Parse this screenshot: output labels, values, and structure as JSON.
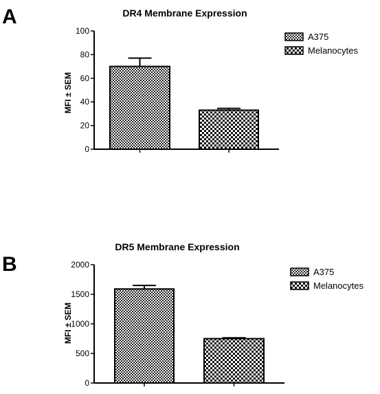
{
  "chart_data": [
    {
      "type": "bar",
      "panel_label": "A",
      "title": "DR4 Membrane Expression",
      "ylabel": "MFI ± SEM",
      "xlabel": "",
      "ylim": [
        0,
        100
      ],
      "yticks": [
        0,
        20,
        40,
        60,
        80,
        100
      ],
      "series": [
        {
          "name": "A375",
          "value": 70,
          "error": 7,
          "pattern": "checker"
        },
        {
          "name": "Melanocytes",
          "value": 33,
          "error": 1.5,
          "pattern": "check"
        }
      ],
      "legend_position": "top-right",
      "grid": false
    },
    {
      "type": "bar",
      "panel_label": "B",
      "title": "DR5 Membrane Expression",
      "ylabel": "MFI ± SEM",
      "xlabel": "",
      "ylim": [
        0,
        2000
      ],
      "yticks": [
        0,
        500,
        1000,
        1500,
        2000
      ],
      "series": [
        {
          "name": "A375",
          "value": 1590,
          "error": 60,
          "pattern": "checker"
        },
        {
          "name": "Melanocytes",
          "value": 750,
          "error": 15,
          "pattern": "check"
        }
      ],
      "legend_position": "top-right",
      "grid": false
    }
  ]
}
